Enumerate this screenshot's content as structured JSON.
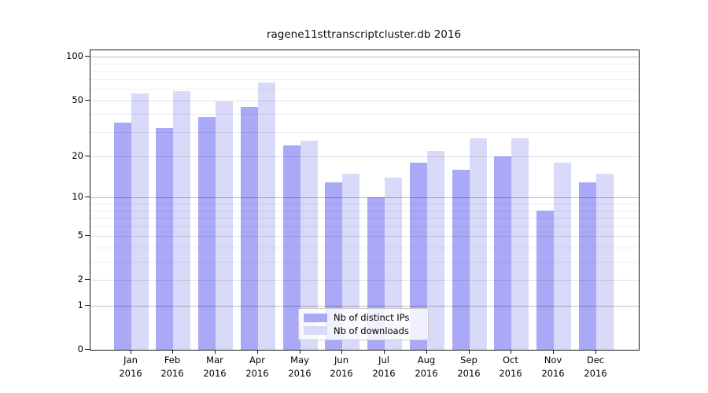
{
  "title": "ragene11sttranscriptcluster.db 2016",
  "chart_data": {
    "type": "bar",
    "title": "ragene11sttranscriptcluster.db 2016",
    "xlabel": "",
    "ylabel": "",
    "categories": [
      "Jan 2016",
      "Feb 2016",
      "Mar 2016",
      "Apr 2016",
      "May 2016",
      "Jun 2016",
      "Jul 2016",
      "Aug 2016",
      "Sep 2016",
      "Oct 2016",
      "Nov 2016",
      "Dec 2016"
    ],
    "series": [
      {
        "name": "Nb of distinct IPs",
        "color": "#a9a9f8",
        "values": [
          35,
          32,
          38,
          45,
          24,
          13,
          10,
          18,
          16,
          20,
          8,
          13
        ]
      },
      {
        "name": "Nb of downloads",
        "color": "#d9d9f9",
        "values": [
          56,
          58,
          49,
          66,
          26,
          15,
          14,
          22,
          27,
          27,
          18,
          15
        ]
      }
    ],
    "yscale": "log1p",
    "yticks": [
      0,
      1,
      2,
      5,
      10,
      20,
      50,
      100
    ],
    "major_gridline_values": [
      1,
      10,
      100
    ],
    "mid_gridline_values": [
      2,
      5,
      20,
      50
    ],
    "minor_gridline_values": [
      3,
      4,
      6,
      7,
      8,
      9,
      30,
      40,
      60,
      70,
      80,
      90
    ],
    "ylim": [
      0,
      111
    ],
    "grid": true,
    "legend_position": "lower-center"
  },
  "legend": {
    "items": [
      {
        "label": "Nb of distinct IPs"
      },
      {
        "label": "Nb of downloads"
      }
    ]
  }
}
